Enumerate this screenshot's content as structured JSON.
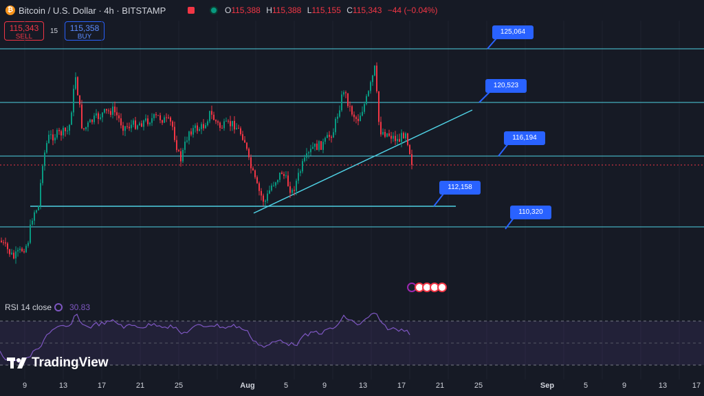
{
  "header": {
    "symbol_title": "Bitcoin / U.S. Dollar · 4h · BITSTAMP",
    "ohlc": [
      {
        "k": "O",
        "v": "115,388"
      },
      {
        "k": "H",
        "v": "115,388"
      },
      {
        "k": "L",
        "v": "115,155"
      },
      {
        "k": "C",
        "v": "115,343"
      }
    ],
    "change": "−44 (−0.04%)",
    "coin_icon": "bitcoin-icon",
    "coin_glyph": "₿"
  },
  "trade": {
    "sell_price": "115,343",
    "sell_label": "SELL",
    "buy_price": "115,358",
    "buy_label": "BUY",
    "spread": "15"
  },
  "levels": [
    {
      "label": "125,064",
      "color": "#4fd1e4"
    },
    {
      "label": "120,523",
      "color": "#4fd1e4"
    },
    {
      "label": "116,194",
      "color": "#4fd1e4"
    },
    {
      "label": "112,158",
      "color": "#4fd1e4"
    },
    {
      "label": "110,320",
      "color": "#4fd1e4"
    }
  ],
  "rsi": {
    "title": "RSI 14 close",
    "value": "30.83",
    "color": "#7e57c2"
  },
  "logo": {
    "text": "TradingView"
  },
  "xaxis": [
    "9",
    "13",
    "17",
    "21",
    "25",
    "Aug",
    "5",
    "9",
    "13",
    "17",
    "21",
    "25",
    "Sep",
    "5",
    "9",
    "13",
    "17"
  ],
  "colors": {
    "up": "#089981",
    "down": "#f23645",
    "bg": "#161a25",
    "accent": "#2962ff"
  }
}
